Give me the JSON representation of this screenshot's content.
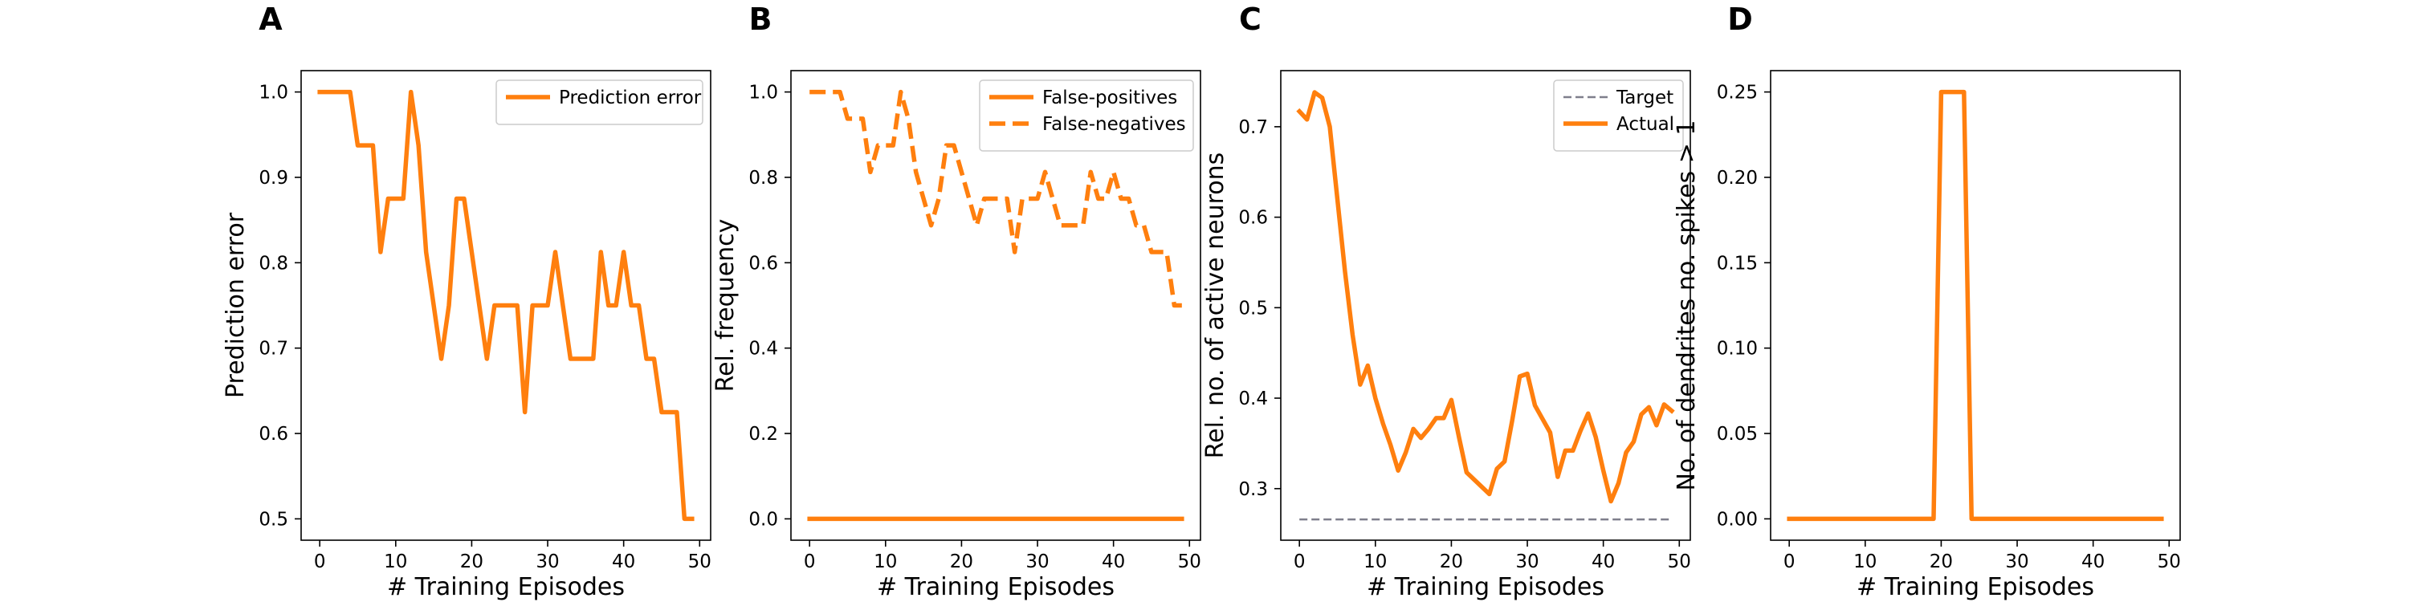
{
  "colors": {
    "orange": "#ff7f0e",
    "gray": "#7f7f8c",
    "axis": "#000000"
  },
  "chart_data": [
    {
      "panel": "A",
      "type": "line",
      "xlabel": "# Training Episodes",
      "ylabel": "Prediction error",
      "xlim": [
        -2.45,
        51.45
      ],
      "ylim": [
        0.475,
        1.025
      ],
      "xticks": [
        0,
        10,
        20,
        30,
        40,
        50
      ],
      "yticks": [
        0.5,
        0.6,
        0.7,
        0.8,
        0.9,
        1.0
      ],
      "xtick_labels": [
        "0",
        "10",
        "20",
        "30",
        "40",
        "50"
      ],
      "ytick_labels": [
        "0.5",
        "0.6",
        "0.7",
        "0.8",
        "0.9",
        "1.0"
      ],
      "legend_position": "top-right",
      "series": [
        {
          "name": "Prediction error",
          "color": "#ff7f0e",
          "style": "solid",
          "x": [
            0,
            1,
            2,
            3,
            4,
            5,
            6,
            7,
            8,
            9,
            10,
            11,
            12,
            13,
            14,
            15,
            16,
            17,
            18,
            19,
            20,
            21,
            22,
            23,
            24,
            25,
            26,
            27,
            28,
            29,
            30,
            31,
            32,
            33,
            34,
            35,
            36,
            37,
            38,
            39,
            40,
            41,
            42,
            43,
            44,
            45,
            46,
            47,
            48,
            49
          ],
          "values": [
            1.0,
            1.0,
            1.0,
            1.0,
            1.0,
            0.9375,
            0.9375,
            0.9375,
            0.8125,
            0.875,
            0.875,
            0.875,
            1.0,
            0.9375,
            0.8125,
            0.75,
            0.6875,
            0.75,
            0.875,
            0.875,
            0.8125,
            0.75,
            0.6875,
            0.75,
            0.75,
            0.75,
            0.75,
            0.625,
            0.75,
            0.75,
            0.75,
            0.8125,
            0.75,
            0.6875,
            0.6875,
            0.6875,
            0.6875,
            0.8125,
            0.75,
            0.75,
            0.8125,
            0.75,
            0.75,
            0.6875,
            0.6875,
            0.625,
            0.625,
            0.625,
            0.5,
            0.5
          ]
        }
      ]
    },
    {
      "panel": "B",
      "type": "line",
      "xlabel": "# Training Episodes",
      "ylabel": "Rel. frequency",
      "xlim": [
        -2.45,
        51.45
      ],
      "ylim": [
        -0.05,
        1.05
      ],
      "xticks": [
        0,
        10,
        20,
        30,
        40,
        50
      ],
      "yticks": [
        0.0,
        0.2,
        0.4,
        0.6,
        0.8,
        1.0
      ],
      "xtick_labels": [
        "0",
        "10",
        "20",
        "30",
        "40",
        "50"
      ],
      "ytick_labels": [
        "0.0",
        "0.2",
        "0.4",
        "0.6",
        "0.8",
        "1.0"
      ],
      "legend_position": "top-right",
      "series": [
        {
          "name": "False-positives",
          "color": "#ff7f0e",
          "style": "solid",
          "x": [
            0,
            49
          ],
          "values": [
            0.0,
            0.0
          ]
        },
        {
          "name": "False-negatives",
          "color": "#ff7f0e",
          "style": "dashed",
          "x": [
            0,
            1,
            2,
            3,
            4,
            5,
            6,
            7,
            8,
            9,
            10,
            11,
            12,
            13,
            14,
            15,
            16,
            17,
            18,
            19,
            20,
            21,
            22,
            23,
            24,
            25,
            26,
            27,
            28,
            29,
            30,
            31,
            32,
            33,
            34,
            35,
            36,
            37,
            38,
            39,
            40,
            41,
            42,
            43,
            44,
            45,
            46,
            47,
            48,
            49
          ],
          "values": [
            1.0,
            1.0,
            1.0,
            1.0,
            1.0,
            0.9375,
            0.9375,
            0.9375,
            0.8125,
            0.875,
            0.875,
            0.875,
            1.0,
            0.9375,
            0.8125,
            0.75,
            0.6875,
            0.75,
            0.875,
            0.875,
            0.8125,
            0.75,
            0.6875,
            0.75,
            0.75,
            0.75,
            0.75,
            0.625,
            0.75,
            0.75,
            0.75,
            0.8125,
            0.75,
            0.6875,
            0.6875,
            0.6875,
            0.6875,
            0.8125,
            0.75,
            0.75,
            0.8125,
            0.75,
            0.75,
            0.6875,
            0.6875,
            0.625,
            0.625,
            0.625,
            0.5,
            0.5
          ]
        }
      ]
    },
    {
      "panel": "C",
      "type": "line",
      "xlabel": "# Training Episodes",
      "ylabel": "Rel. no. of active neurons",
      "xlim": [
        -2.45,
        51.45
      ],
      "ylim": [
        0.243,
        0.762
      ],
      "xticks": [
        0,
        10,
        20,
        30,
        40,
        50
      ],
      "yticks": [
        0.3,
        0.4,
        0.5,
        0.6,
        0.7
      ],
      "xtick_labels": [
        "0",
        "10",
        "20",
        "30",
        "40",
        "50"
      ],
      "ytick_labels": [
        "0.3",
        "0.4",
        "0.5",
        "0.6",
        "0.7"
      ],
      "legend_position": "top-right",
      "series": [
        {
          "name": "Target",
          "color": "#7f7f8c",
          "style": "dashed",
          "x": [
            0,
            49
          ],
          "values": [
            0.266,
            0.266
          ]
        },
        {
          "name": "Actual",
          "color": "#ff7f0e",
          "style": "solid",
          "x": [
            0,
            1,
            2,
            3,
            4,
            5,
            6,
            7,
            8,
            9,
            10,
            11,
            12,
            13,
            14,
            15,
            16,
            17,
            18,
            19,
            20,
            21,
            22,
            23,
            24,
            25,
            26,
            27,
            28,
            29,
            30,
            31,
            32,
            33,
            34,
            35,
            36,
            37,
            38,
            39,
            40,
            41,
            42,
            43,
            44,
            45,
            46,
            47,
            48,
            49
          ],
          "values": [
            0.717,
            0.708,
            0.738,
            0.732,
            0.7,
            0.62,
            0.54,
            0.47,
            0.415,
            0.436,
            0.4,
            0.372,
            0.348,
            0.32,
            0.34,
            0.366,
            0.356,
            0.366,
            0.378,
            0.378,
            0.398,
            0.357,
            0.318,
            0.31,
            0.302,
            0.294,
            0.322,
            0.33,
            0.375,
            0.424,
            0.427,
            0.392,
            0.377,
            0.362,
            0.313,
            0.342,
            0.342,
            0.364,
            0.383,
            0.357,
            0.32,
            0.286,
            0.306,
            0.34,
            0.352,
            0.382,
            0.39,
            0.37,
            0.393,
            0.386
          ]
        }
      ]
    },
    {
      "panel": "D",
      "type": "line",
      "xlabel": "# Training Episodes",
      "ylabel": "No. of dendrites no. spikes > 1",
      "xlim": [
        -2.45,
        51.45
      ],
      "ylim": [
        -0.0125,
        0.2625
      ],
      "xticks": [
        0,
        10,
        20,
        30,
        40,
        50
      ],
      "yticks": [
        0.0,
        0.05,
        0.1,
        0.15,
        0.2,
        0.25
      ],
      "xtick_labels": [
        "0",
        "10",
        "20",
        "30",
        "40",
        "50"
      ],
      "ytick_labels": [
        "0.00",
        "0.05",
        "0.10",
        "0.15",
        "0.20",
        "0.25"
      ],
      "series": [
        {
          "color": "#ff7f0e",
          "style": "solid",
          "x": [
            0,
            19,
            20,
            21,
            22,
            23,
            24,
            25,
            49
          ],
          "values": [
            0.0,
            0.0,
            0.25,
            0.25,
            0.25,
            0.25,
            0.0,
            0.0,
            0.0
          ]
        }
      ]
    }
  ]
}
